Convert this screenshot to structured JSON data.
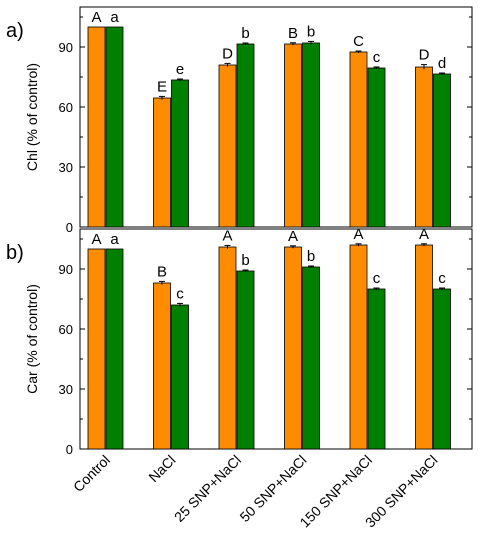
{
  "chart_data": {
    "type": "bar",
    "categories": [
      "Control",
      "NaCl",
      "25 SNP+NaCl",
      "50 SNP+NaCl",
      "150 SNP+NaCl",
      "300 SNP+NaCl"
    ],
    "series_colors": [
      "#ff8c00",
      "#008000"
    ],
    "ylim": [
      0,
      110
    ],
    "yticks": [
      0,
      30,
      60,
      90
    ],
    "panels": [
      {
        "label": "a)",
        "ylabel": "Chl (% of control)",
        "series": [
          {
            "values": [
              100,
              64.5,
              81,
              91.5,
              87.5,
              80
            ],
            "errors": [
              0,
              0.8,
              0.8,
              0.6,
              0.5,
              1.2
            ],
            "letters": [
              "A",
              "E",
              "D",
              "B",
              "C",
              "D"
            ]
          },
          {
            "values": [
              100,
              73.5,
              91.5,
              92,
              79.5,
              76.5
            ],
            "errors": [
              0,
              0.5,
              0.5,
              0.8,
              0.5,
              0.5
            ],
            "letters": [
              "a",
              "e",
              "b",
              "b",
              "c",
              "d"
            ]
          }
        ]
      },
      {
        "label": "b)",
        "ylabel": "Car (% of control)",
        "series": [
          {
            "values": [
              100,
              83,
              101,
              101,
              102,
              102
            ],
            "errors": [
              0,
              0.8,
              0.8,
              0.6,
              0.6,
              0.6
            ],
            "letters": [
              "A",
              "B",
              "A",
              "A",
              "A",
              "A"
            ]
          },
          {
            "values": [
              100,
              72,
              89,
              91,
              80,
              80
            ],
            "errors": [
              0,
              0.8,
              0.5,
              0.5,
              0.5,
              0.5
            ],
            "letters": [
              "a",
              "c",
              "b",
              "b",
              "c",
              "c"
            ]
          }
        ]
      }
    ]
  }
}
